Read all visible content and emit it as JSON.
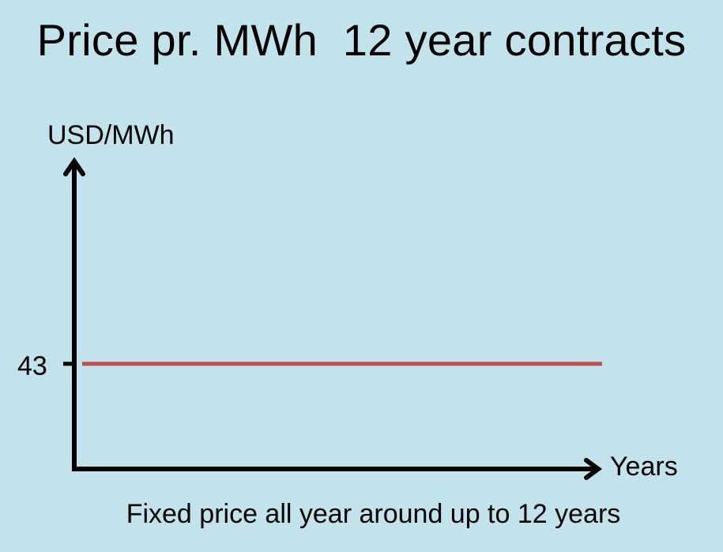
{
  "slide": {
    "title": "Price pr. MWh  12 year contracts",
    "caption": "Fixed price all year around up to 12 years",
    "background_color": "#c2e2ec"
  },
  "chart_data": {
    "type": "line",
    "title": "Price pr. MWh  12 year contracts",
    "xlabel": "Years",
    "ylabel": "USD/MWh",
    "series": [
      {
        "color": "#c0504d",
        "x": [
          0,
          12
        ],
        "y": [
          43,
          43
        ]
      }
    ],
    "y_ticks": [
      43
    ],
    "y_tick_labels": [
      "43"
    ],
    "xlim": [
      0,
      12
    ],
    "grid": false,
    "legend": "none"
  }
}
